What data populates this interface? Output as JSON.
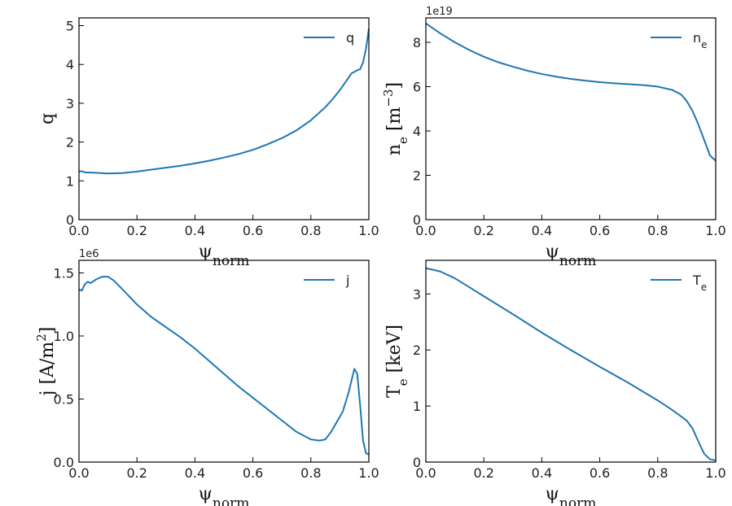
{
  "colors": {
    "line": "#1f77b4",
    "axis": "#000000",
    "background": "#ffffff"
  },
  "chart_data": [
    {
      "id": "q",
      "type": "line",
      "xlabel": "ψnorm",
      "ylabel": "q",
      "xlim": [
        0,
        1
      ],
      "ylim": [
        0,
        5.2
      ],
      "xticks": [
        0,
        0.2,
        0.4,
        0.6,
        0.8,
        1.0
      ],
      "xtick_labels": [
        "0.0",
        "0.2",
        "0.4",
        "0.6",
        "0.8",
        "1.0"
      ],
      "yticks": [
        0,
        1,
        2,
        3,
        4,
        5
      ],
      "ytick_labels": [
        "0",
        "1",
        "2",
        "3",
        "4",
        "5"
      ],
      "scale_label": "",
      "legend": {
        "label": "q",
        "position": "top-right"
      },
      "x": [
        0,
        0.01,
        0.02,
        0.05,
        0.1,
        0.15,
        0.2,
        0.25,
        0.3,
        0.35,
        0.4,
        0.45,
        0.5,
        0.55,
        0.6,
        0.65,
        0.7,
        0.75,
        0.8,
        0.85,
        0.88,
        0.9,
        0.92,
        0.94,
        0.96,
        0.97,
        0.98,
        0.99,
        1.0
      ],
      "y": [
        1.24,
        1.25,
        1.22,
        1.21,
        1.19,
        1.2,
        1.24,
        1.29,
        1.34,
        1.39,
        1.45,
        1.52,
        1.6,
        1.69,
        1.8,
        1.94,
        2.1,
        2.3,
        2.56,
        2.9,
        3.15,
        3.34,
        3.55,
        3.77,
        3.85,
        3.88,
        4.05,
        4.4,
        4.92
      ]
    },
    {
      "id": "ne",
      "type": "line",
      "xlabel": "ψnorm",
      "ylabel": "ne [m−3]",
      "xlim": [
        0,
        1
      ],
      "ylim": [
        0,
        9.1
      ],
      "xticks": [
        0,
        0.2,
        0.4,
        0.6,
        0.8,
        1.0
      ],
      "xtick_labels": [
        "0.0",
        "0.2",
        "0.4",
        "0.6",
        "0.8",
        "1.0"
      ],
      "yticks": [
        0,
        2,
        4,
        6,
        8
      ],
      "ytick_labels": [
        "0",
        "2",
        "4",
        "6",
        "8"
      ],
      "scale_label": "1e19",
      "legend": {
        "label": "ne",
        "position": "top-right"
      },
      "x": [
        0,
        0.05,
        0.1,
        0.15,
        0.2,
        0.25,
        0.3,
        0.35,
        0.4,
        0.45,
        0.5,
        0.55,
        0.6,
        0.65,
        0.7,
        0.75,
        0.8,
        0.85,
        0.88,
        0.9,
        0.92,
        0.94,
        0.96,
        0.98,
        1.0
      ],
      "y": [
        8.85,
        8.4,
        8.0,
        7.65,
        7.35,
        7.1,
        6.9,
        6.72,
        6.57,
        6.45,
        6.35,
        6.27,
        6.2,
        6.15,
        6.11,
        6.07,
        6.0,
        5.85,
        5.65,
        5.35,
        4.9,
        4.3,
        3.6,
        2.9,
        2.65
      ]
    },
    {
      "id": "j",
      "type": "line",
      "xlabel": "ψnorm",
      "ylabel": "j [A/m2]",
      "xlim": [
        0,
        1
      ],
      "ylim": [
        0,
        1.6
      ],
      "xticks": [
        0,
        0.2,
        0.4,
        0.6,
        0.8,
        1.0
      ],
      "xtick_labels": [
        "0.0",
        "0.2",
        "0.4",
        "0.6",
        "0.8",
        "1.0"
      ],
      "yticks": [
        0,
        0.5,
        1.0,
        1.5
      ],
      "ytick_labels": [
        "0.0",
        "0.5",
        "1.0",
        "1.5"
      ],
      "scale_label": "1e6",
      "legend": {
        "label": "j",
        "position": "top-right"
      },
      "x": [
        0,
        0.01,
        0.02,
        0.03,
        0.04,
        0.06,
        0.08,
        0.1,
        0.12,
        0.15,
        0.2,
        0.25,
        0.3,
        0.35,
        0.4,
        0.45,
        0.5,
        0.55,
        0.6,
        0.65,
        0.7,
        0.75,
        0.8,
        0.83,
        0.85,
        0.87,
        0.89,
        0.91,
        0.93,
        0.95,
        0.96,
        0.97,
        0.98,
        0.99,
        1.0
      ],
      "y": [
        1.37,
        1.36,
        1.41,
        1.43,
        1.42,
        1.45,
        1.47,
        1.47,
        1.44,
        1.37,
        1.25,
        1.15,
        1.07,
        0.99,
        0.9,
        0.8,
        0.7,
        0.6,
        0.51,
        0.42,
        0.33,
        0.24,
        0.18,
        0.17,
        0.18,
        0.24,
        0.32,
        0.4,
        0.55,
        0.74,
        0.7,
        0.45,
        0.17,
        0.07,
        0.06
      ]
    },
    {
      "id": "te",
      "type": "line",
      "xlabel": "ψnorm",
      "ylabel": "Te [keV]",
      "xlim": [
        0,
        1
      ],
      "ylim": [
        0,
        3.6
      ],
      "xticks": [
        0,
        0.2,
        0.4,
        0.6,
        0.8,
        1.0
      ],
      "xtick_labels": [
        "0.0",
        "0.2",
        "0.4",
        "0.6",
        "0.8",
        "1.0"
      ],
      "yticks": [
        0,
        1,
        2,
        3
      ],
      "ytick_labels": [
        "0",
        "1",
        "2",
        "3"
      ],
      "scale_label": "",
      "legend": {
        "label": "Te",
        "position": "top-right"
      },
      "x": [
        0,
        0.05,
        0.1,
        0.15,
        0.2,
        0.3,
        0.4,
        0.5,
        0.6,
        0.7,
        0.8,
        0.85,
        0.9,
        0.92,
        0.94,
        0.96,
        0.98,
        1.0
      ],
      "y": [
        3.46,
        3.4,
        3.28,
        3.12,
        2.96,
        2.64,
        2.31,
        2.0,
        1.7,
        1.41,
        1.1,
        0.93,
        0.74,
        0.6,
        0.37,
        0.15,
        0.05,
        0.03
      ]
    }
  ]
}
